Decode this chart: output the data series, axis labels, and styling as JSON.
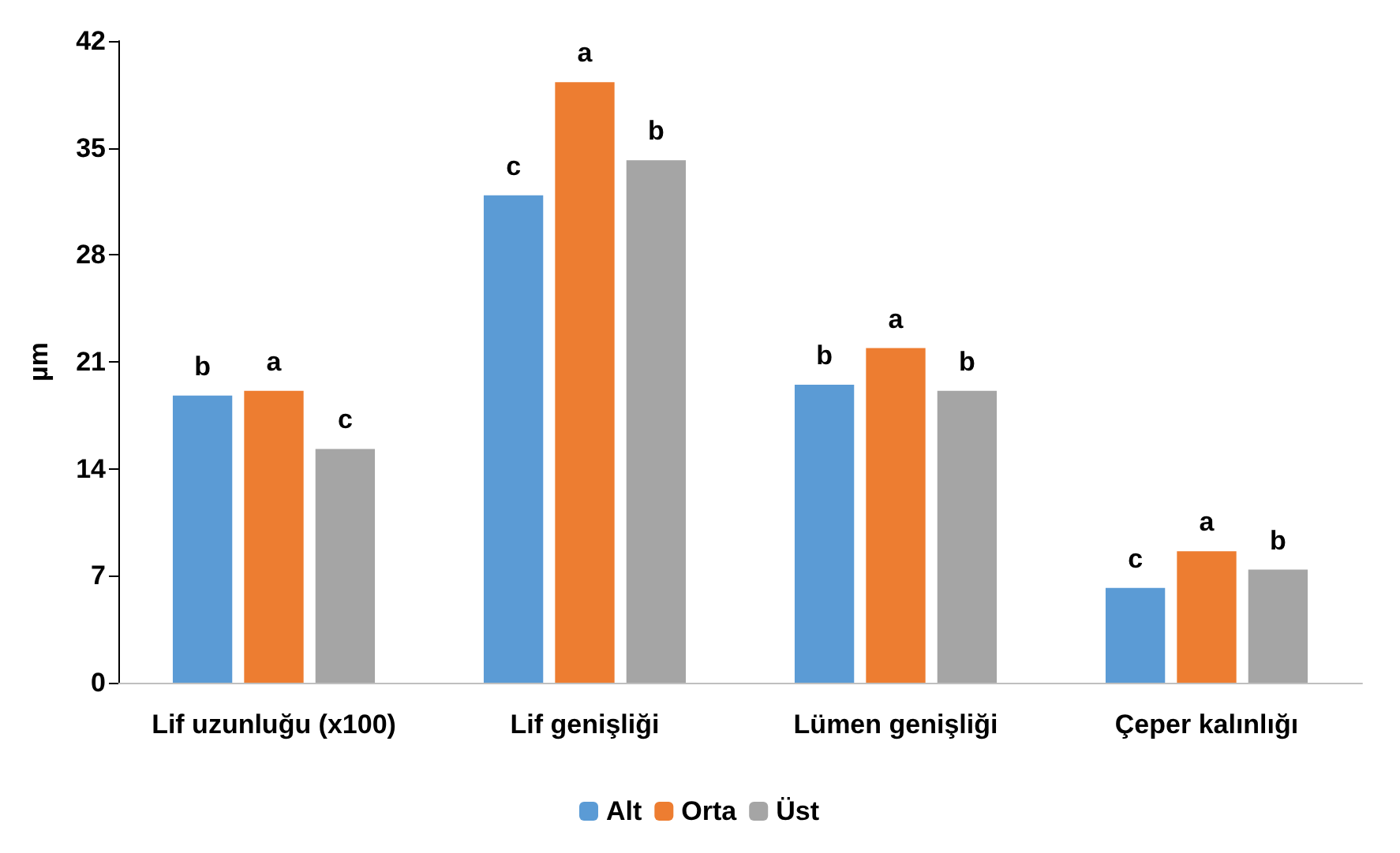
{
  "chart_data": {
    "type": "bar",
    "ylabel": "µm",
    "categories": [
      "Lif uzunluğu (x100)",
      "Lif genişliği",
      "Lümen genişliği",
      "Çeper kalınlığı"
    ],
    "ylim": [
      0,
      42
    ],
    "yticks": [
      0,
      7,
      14,
      21,
      28,
      35,
      42
    ],
    "legend": "bottom",
    "series": [
      {
        "name": "Alt",
        "color": "#5b9bd5",
        "values": [
          18.8,
          31.9,
          19.5,
          6.2
        ],
        "value_labels": [
          "b",
          "c",
          "b",
          "c"
        ]
      },
      {
        "name": "Orta",
        "color": "#ed7d31",
        "values": [
          19.1,
          39.3,
          21.9,
          8.6
        ],
        "value_labels": [
          "a",
          "a",
          "a",
          "a"
        ]
      },
      {
        "name": "Üst",
        "color": "#a5a5a5",
        "values": [
          15.3,
          34.2,
          19.1,
          7.4
        ],
        "value_labels": [
          "c",
          "b",
          "b",
          "b"
        ]
      }
    ]
  }
}
